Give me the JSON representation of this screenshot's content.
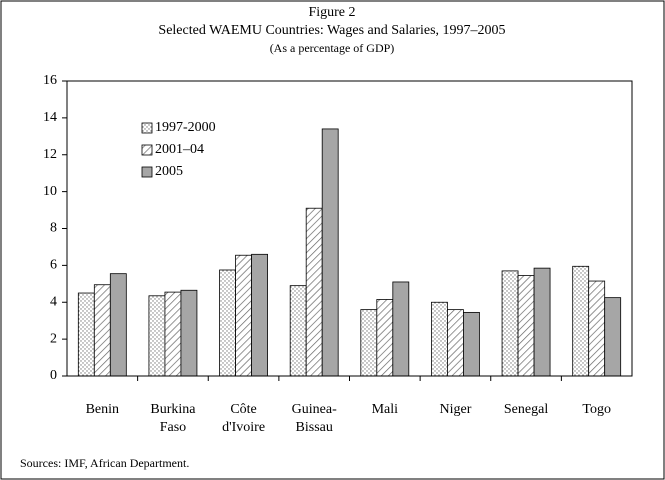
{
  "chart_data": {
    "type": "bar",
    "title": "Figure 2",
    "subtitle": "Selected WAEMU Countries: Wages and Salaries, 1997–2005",
    "note": "(As a percentage of GDP)",
    "source": "Sources: IMF, African Department.",
    "categories": [
      "Benin",
      "Burkina\nFaso",
      "Côte\nd'Ivoire",
      "Guinea-\nBissau",
      "Mali",
      "Niger",
      "Senegal",
      "Togo"
    ],
    "series": [
      {
        "name": "1997-2000",
        "color": "#ffffff",
        "pattern": "dots",
        "values": [
          4.5,
          4.35,
          5.75,
          4.9,
          3.6,
          4.0,
          5.7,
          5.95
        ]
      },
      {
        "name": "2001–04",
        "color": "#ffffff",
        "pattern": "hatch",
        "values": [
          4.95,
          4.55,
          6.55,
          9.1,
          4.15,
          3.6,
          5.45,
          5.15
        ]
      },
      {
        "name": "2005",
        "color": "#a6a6a6",
        "pattern": "solid",
        "values": [
          5.55,
          4.65,
          6.6,
          13.4,
          5.1,
          3.45,
          5.85,
          4.25
        ]
      }
    ],
    "ylim": [
      0,
      16
    ],
    "yticks": [
      0,
      2,
      4,
      6,
      8,
      10,
      12,
      14,
      16
    ],
    "grid": false,
    "legend": "upper left"
  }
}
